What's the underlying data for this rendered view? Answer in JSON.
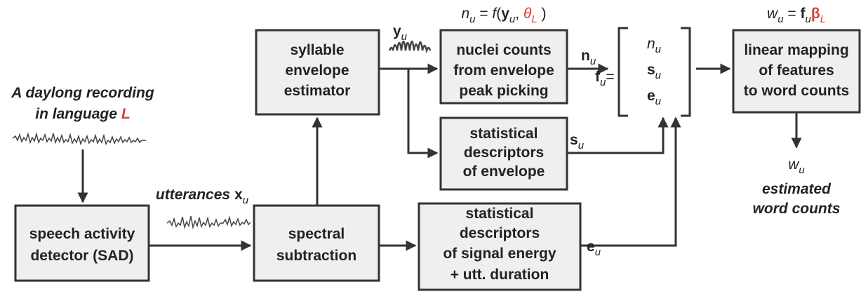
{
  "input": {
    "line1": "A daylong recording",
    "line2": "in language",
    "language": "L"
  },
  "utterances": {
    "text": "utterances",
    "symbol": "x",
    "sub": "u"
  },
  "boxes": {
    "sad": [
      "speech activity",
      "detector (SAD)"
    ],
    "spectral": [
      "spectral",
      "subtraction"
    ],
    "syllable": [
      "syllable",
      "envelope",
      "estimator"
    ],
    "nuclei": [
      "nuclei counts",
      "from envelope",
      "peak picking"
    ],
    "envelope_stats": [
      "statistical",
      "descriptors",
      "of envelope"
    ],
    "energy_stats": [
      "statistical",
      "descriptors",
      "of signal energy",
      "+ utt. duration"
    ],
    "mapping": [
      "linear mapping",
      "of features",
      "to word counts"
    ]
  },
  "labels": {
    "y_u": [
      "y",
      "u"
    ],
    "n_u": [
      "n",
      "u"
    ],
    "s_u": [
      "s",
      "u"
    ],
    "e_u": [
      "e",
      "u"
    ],
    "f_u": [
      "f",
      "u",
      "="
    ],
    "vector": [
      [
        "n",
        "u"
      ],
      [
        "s",
        "u"
      ],
      [
        "e",
        "u"
      ]
    ],
    "n_formula": [
      "n",
      "u",
      " = ",
      "f",
      "(",
      "y",
      "u",
      ", ",
      "θ",
      "L",
      " )"
    ],
    "w_formula": [
      "w",
      "u",
      " = ",
      "f",
      "u",
      "β",
      "L"
    ],
    "output": [
      "w",
      "u"
    ],
    "output_text": [
      "estimated",
      "word counts"
    ]
  }
}
